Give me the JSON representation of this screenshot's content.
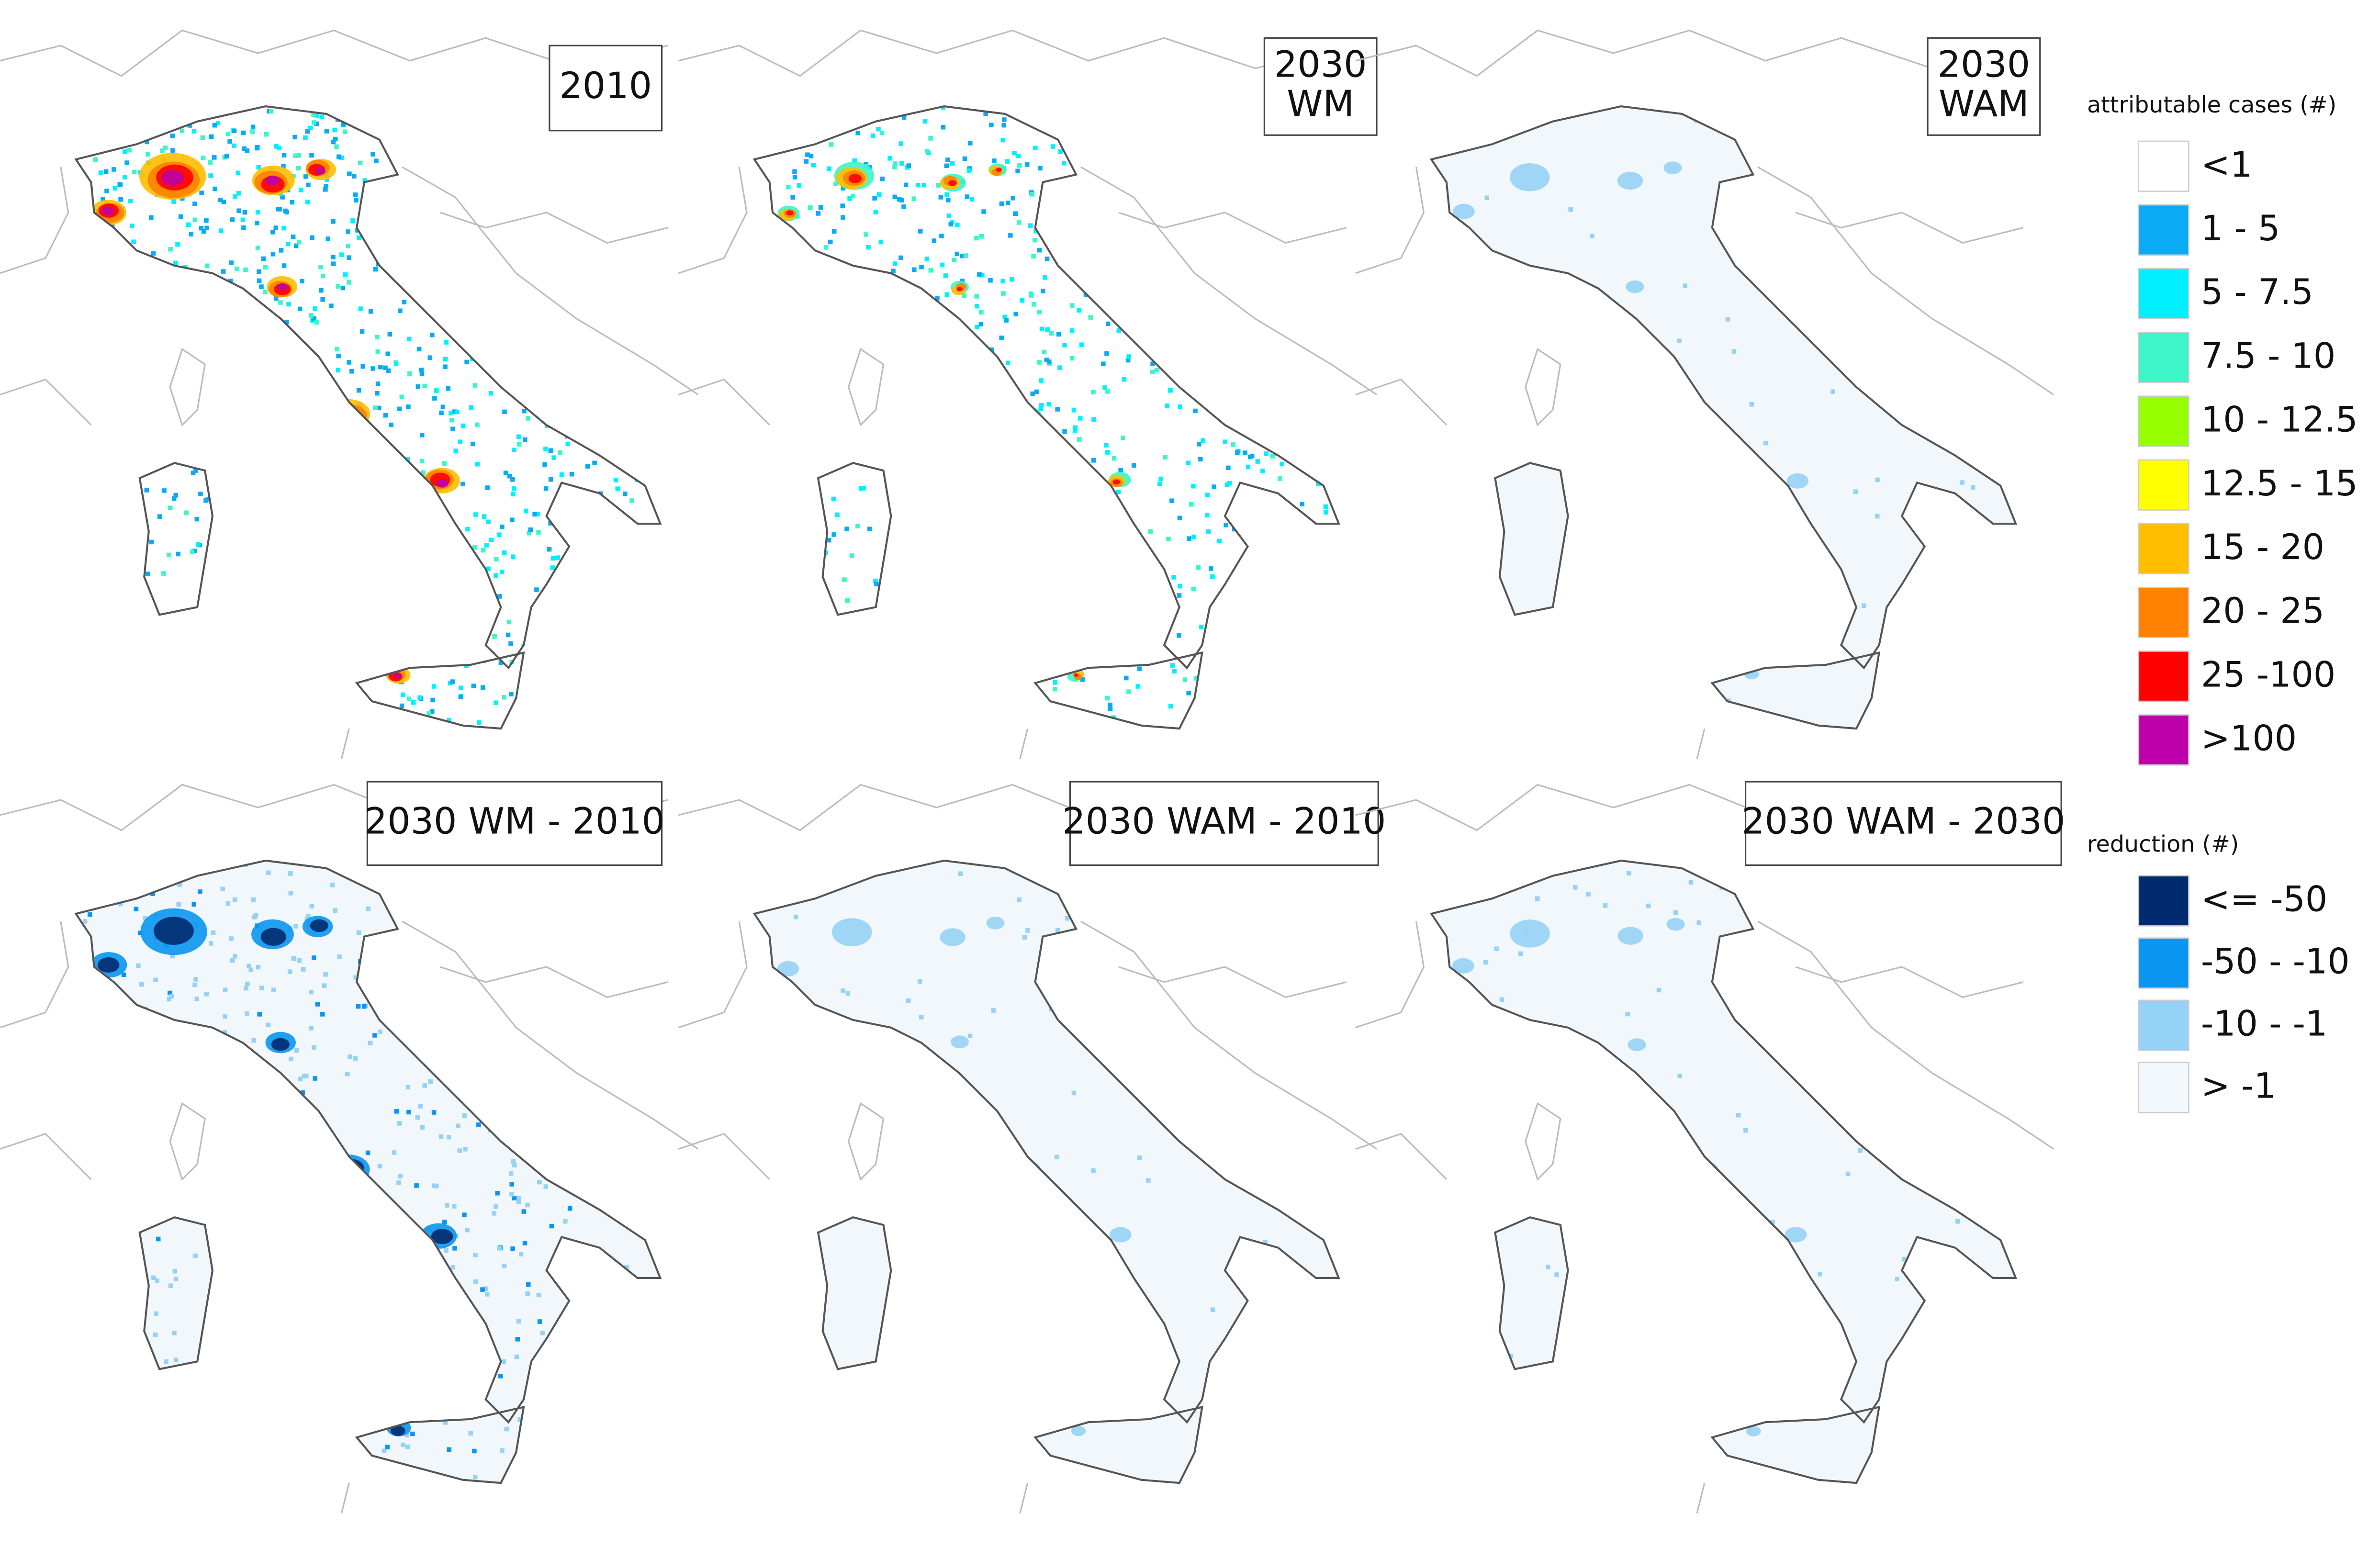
{
  "panels": [
    {
      "lines": [
        "2010"
      ]
    },
    {
      "lines": [
        "2030",
        "WM"
      ]
    },
    {
      "lines": [
        "2030",
        "WAM"
      ]
    },
    {
      "lines": [
        "2030 WM - 2010"
      ]
    },
    {
      "lines": [
        "2030 WAM - 2010"
      ]
    },
    {
      "lines": [
        "2030 WAM - 2030"
      ]
    }
  ],
  "legends": [
    {
      "title": "attributable cases (#)",
      "items": [
        {
          "label": "<1",
          "color": "#ffffff"
        },
        {
          "label": "1 - 5",
          "color": "#0aaaf5"
        },
        {
          "label": "5 - 7.5",
          "color": "#00f0ff"
        },
        {
          "label": "7.5 - 10",
          "color": "#3cf5c8"
        },
        {
          "label": "10 - 12.5",
          "color": "#96ff00"
        },
        {
          "label": "12.5 - 15",
          "color": "#ffff00"
        },
        {
          "label": "15 - 20",
          "color": "#ffbe00"
        },
        {
          "label": "20 - 25",
          "color": "#ff8200"
        },
        {
          "label": "25 -100",
          "color": "#ff0000"
        },
        {
          "label": ">100",
          "color": "#be00aa"
        }
      ]
    },
    {
      "title": "reduction (#)",
      "items": [
        {
          "label": "<= -50",
          "color": "#002a6e"
        },
        {
          "label": "-50 - -10",
          "color": "#0a96f0"
        },
        {
          "label": "-10 - -1",
          "color": "#96d2f5"
        },
        {
          "label": "> -1",
          "color": "#f2f7fc"
        }
      ]
    }
  ]
}
